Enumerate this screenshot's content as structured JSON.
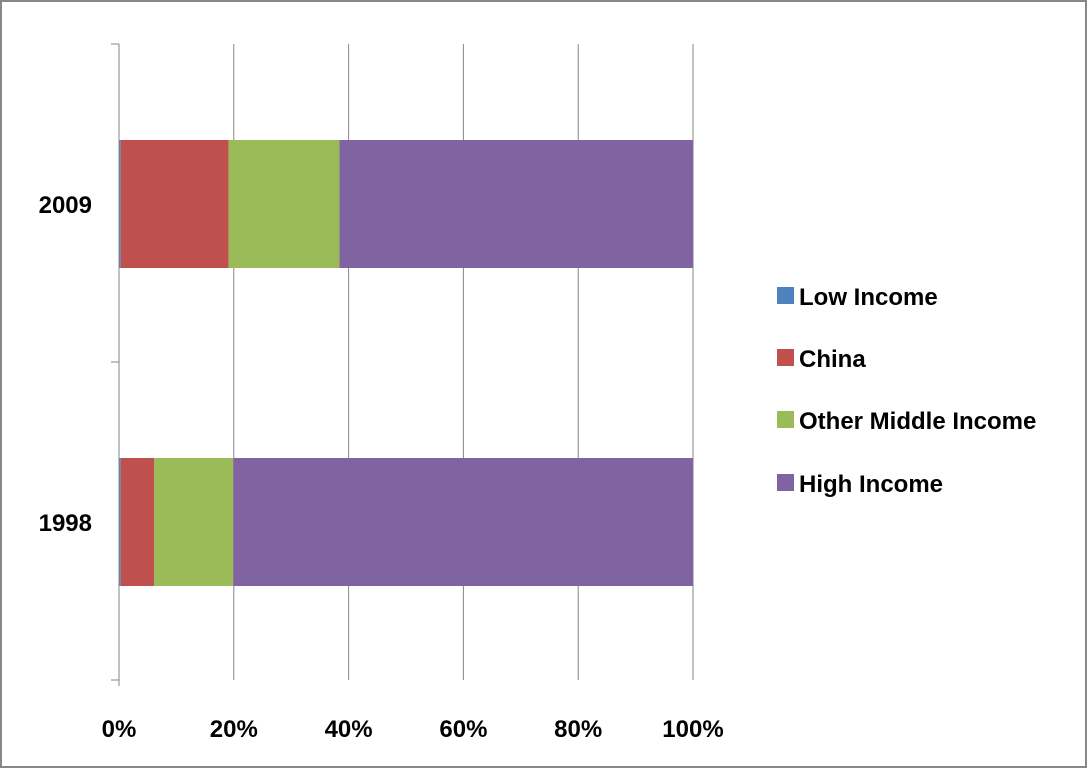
{
  "chart_data": {
    "type": "bar",
    "orientation": "horizontal",
    "stacked": "percent",
    "categories": [
      "1998",
      "2009"
    ],
    "series": [
      {
        "name": "Low Income",
        "color": "#4F81BD",
        "values": [
          0.3,
          0.3
        ]
      },
      {
        "name": "China",
        "color": "#C0504D",
        "values": [
          5.8,
          18.8
        ]
      },
      {
        "name": "Other Middle Income",
        "color": "#9BBB59",
        "values": [
          13.8,
          19.3
        ]
      },
      {
        "name": "High Income",
        "color": "#8064A2",
        "values": [
          80.1,
          61.6
        ]
      }
    ],
    "xlim": [
      0,
      100
    ],
    "xticks": [
      "0%",
      "20%",
      "40%",
      "60%",
      "80%",
      "100%"
    ],
    "grid": "vertical",
    "legend_position": "right"
  }
}
